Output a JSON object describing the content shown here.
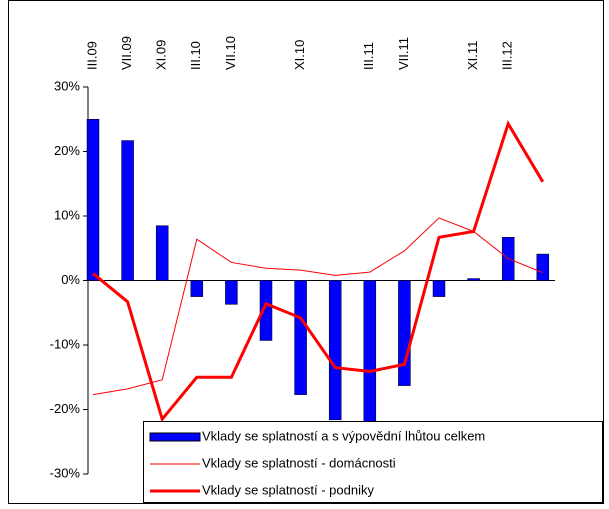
{
  "chart_data": {
    "type": "bar_line",
    "categories": [
      "III.09",
      "VII.09",
      "XI.09",
      "III.10",
      "VII.10",
      null,
      "XI.10",
      null,
      "III.11",
      "VII.11",
      null,
      "XI.11",
      "III.12",
      null
    ],
    "series": [
      {
        "name": "Vklady se splatností a s výpovědní lhůtou celkem",
        "type": "bar",
        "color": "#0000ff",
        "values": [
          25,
          21.7,
          8.5,
          -2.5,
          -3.7,
          -9.3,
          -17.7,
          -21.6,
          -22,
          -16.3,
          -2.5,
          0.3,
          6.7,
          4.1
        ]
      },
      {
        "name": "Vklady se splatností - domácnosti",
        "type": "line",
        "color": "#ff0000",
        "width": 1,
        "values": [
          -17.7,
          -16.8,
          -15.4,
          6.4,
          2.8,
          1.9,
          1.6,
          0.8,
          1.3,
          4.6,
          9.7,
          7.6,
          3.4,
          1.2
        ]
      },
      {
        "name": "Vklady se splatností - podniky",
        "type": "line",
        "color": "#ff0000",
        "width": 3,
        "values": [
          1.1,
          -3.3,
          -21.5,
          -15.0,
          -15.0,
          -3.6,
          -5.8,
          -13.5,
          -14.1,
          -13.0,
          6.7,
          7.6,
          24.3,
          15.3
        ]
      }
    ],
    "ylim": [
      -30,
      30
    ],
    "yticks": [
      {
        "value": -30,
        "label": "-30%"
      },
      {
        "value": -20,
        "label": "-20%"
      },
      {
        "value": -10,
        "label": "-10%"
      },
      {
        "value": 0,
        "label": "0%"
      },
      {
        "value": 10,
        "label": "10%"
      },
      {
        "value": 20,
        "label": "20%"
      },
      {
        "value": 30,
        "label": "30%"
      }
    ],
    "legend": "bottom-right"
  }
}
